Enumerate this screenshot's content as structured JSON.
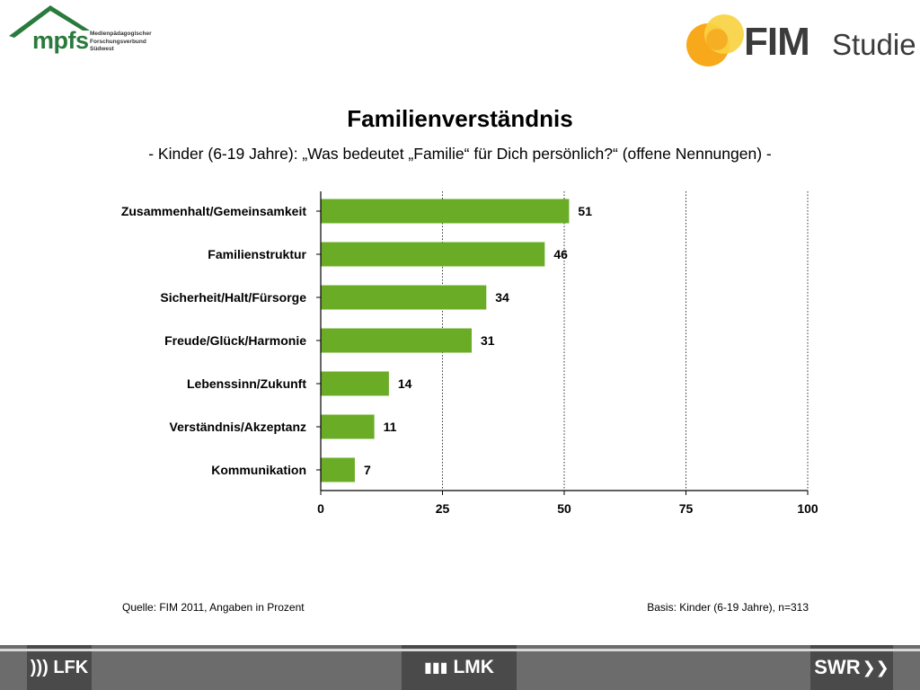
{
  "header": {
    "mpfs_wordmark": "mpfs",
    "mpfs_subtitle": "Medienpädagogischer\nForschungsverbund\nSüdwest",
    "fim_wordmark": "FIM",
    "fim_wordmark2": "Studie"
  },
  "colors": {
    "bar": "#6aac26",
    "mpfs_green": "#2a7a3c",
    "fim_orange": "#f7a81b",
    "fim_yellow": "#f9d342"
  },
  "chart_data": {
    "type": "bar",
    "orientation": "horizontal",
    "title": "Familienverständnis",
    "subtitle": "- Kinder (6-19 Jahre): „Was bedeutet „Familie“ für Dich persönlich?“ (offene Nennungen) -",
    "categories": [
      "Zusammenhalt/Gemeinsamkeit",
      "Familienstruktur",
      "Sicherheit/Halt/Fürsorge",
      "Freude/Glück/Harmonie",
      "Lebenssinn/Zukunft",
      "Verständnis/Akzeptanz",
      "Kommunikation"
    ],
    "values": [
      51,
      46,
      34,
      31,
      14,
      11,
      7
    ],
    "xlim": [
      0,
      100
    ],
    "xticks": [
      "0",
      "25",
      "50",
      "75",
      "100"
    ],
    "grid": "dotted vertical",
    "legend": "none"
  },
  "footer": {
    "source": "Quelle: FIM 2011,  Angaben in Prozent",
    "basis": "Basis: Kinder (6-19 Jahre), n=313"
  },
  "bottom_bar": {
    "lfk": "))) LFK",
    "lmk": "LMK",
    "swr": "SWR"
  }
}
